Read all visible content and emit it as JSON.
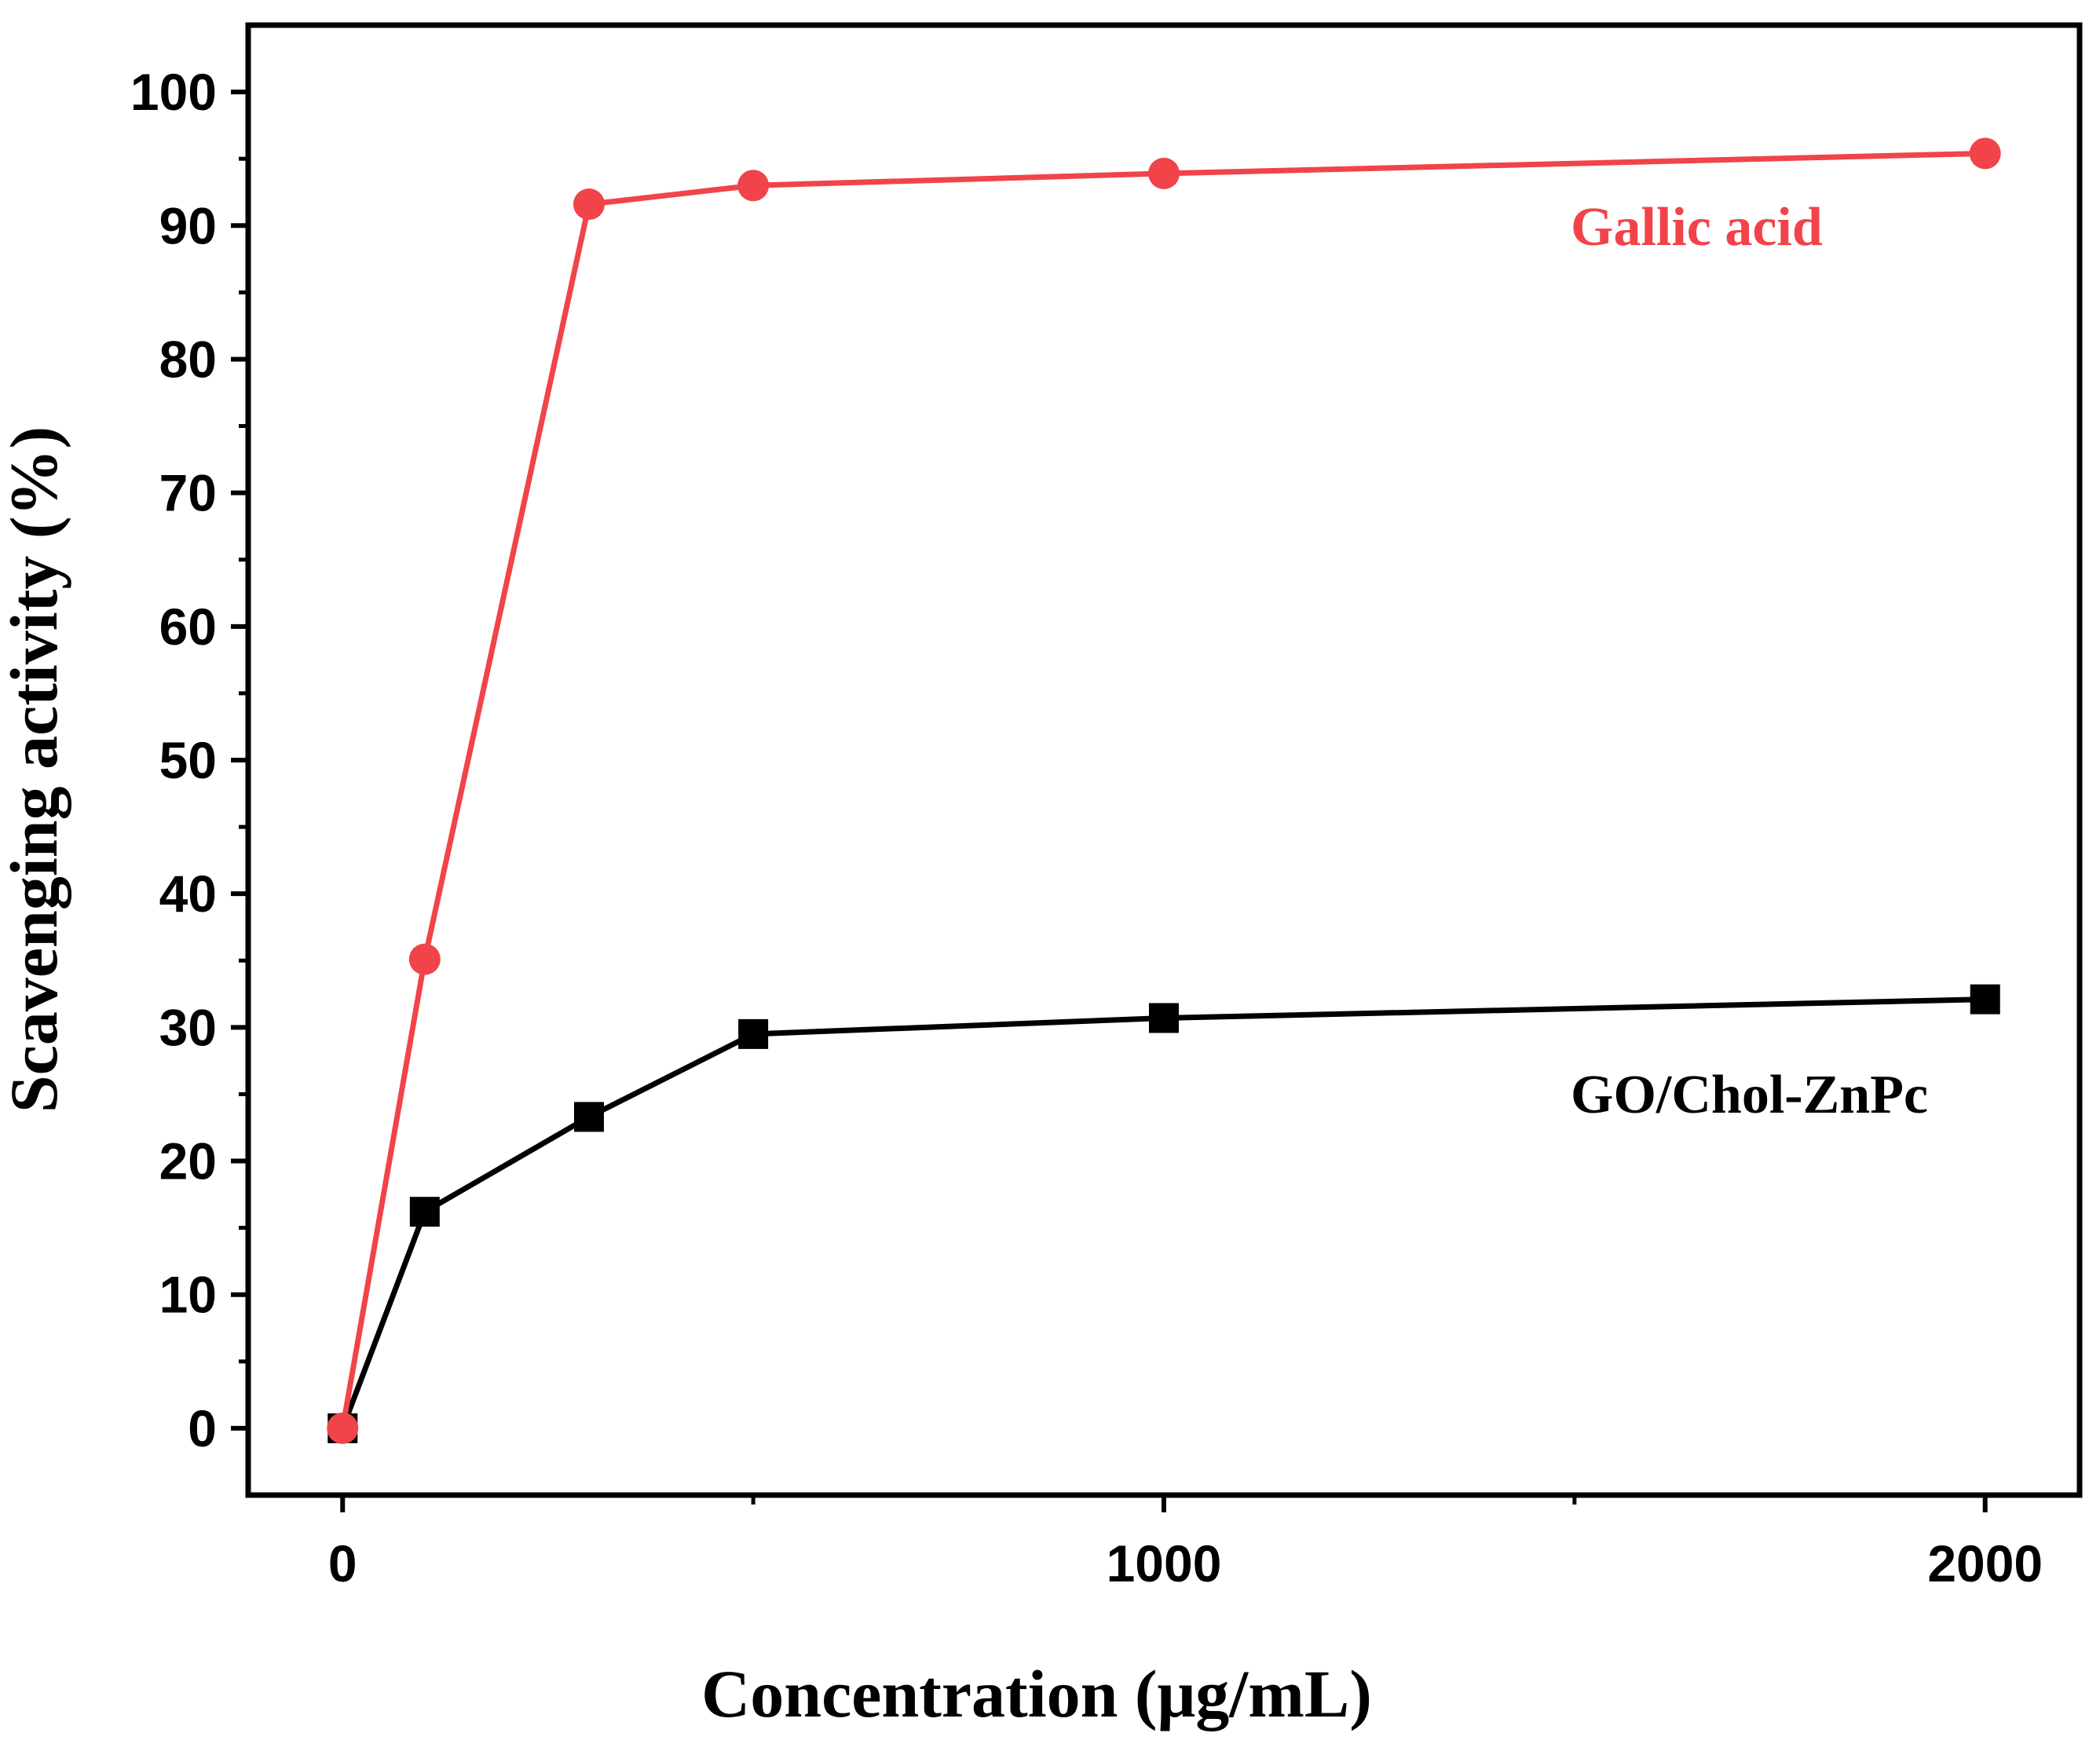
{
  "chart_data": {
    "type": "line",
    "title": "",
    "xlabel": "Concentration (μg/mL)",
    "ylabel": "Scavenging activity (%)",
    "xlim": [
      -115,
      2115
    ],
    "ylim": [
      -5,
      105
    ],
    "x_ticks": [
      0,
      1000,
      2000
    ],
    "x_tick_labels": [
      "0",
      "1000",
      "2000"
    ],
    "x_minor_ticks": [
      500,
      1500
    ],
    "y_ticks": [
      0,
      10,
      20,
      30,
      40,
      50,
      60,
      70,
      80,
      90,
      100
    ],
    "y_tick_labels": [
      "0",
      "10",
      "20",
      "30",
      "40",
      "50",
      "60",
      "70",
      "80",
      "90",
      "100"
    ],
    "y_minor_ticks": [
      5,
      15,
      25,
      35,
      45,
      55,
      65,
      75,
      85,
      95
    ],
    "grid": false,
    "series": [
      {
        "name": "Gallic acid",
        "color": "#f0444a",
        "marker": "circle",
        "x": [
          0,
          100,
          300,
          500,
          1000,
          2000
        ],
        "values": [
          0,
          35.1,
          91.6,
          93.0,
          93.9,
          95.4
        ]
      },
      {
        "name": "GO/Chol-ZnPc",
        "color": "#000000",
        "marker": "square",
        "x": [
          0,
          100,
          300,
          500,
          1000,
          2000
        ],
        "values": [
          0,
          16.2,
          23.3,
          29.5,
          30.7,
          32.1
        ]
      }
    ],
    "annotations": [
      {
        "text": "Gallic acid",
        "series": "Gallic acid"
      },
      {
        "text": "GO/Chol-ZnPc",
        "series": "GO/Chol-ZnPc"
      }
    ]
  }
}
